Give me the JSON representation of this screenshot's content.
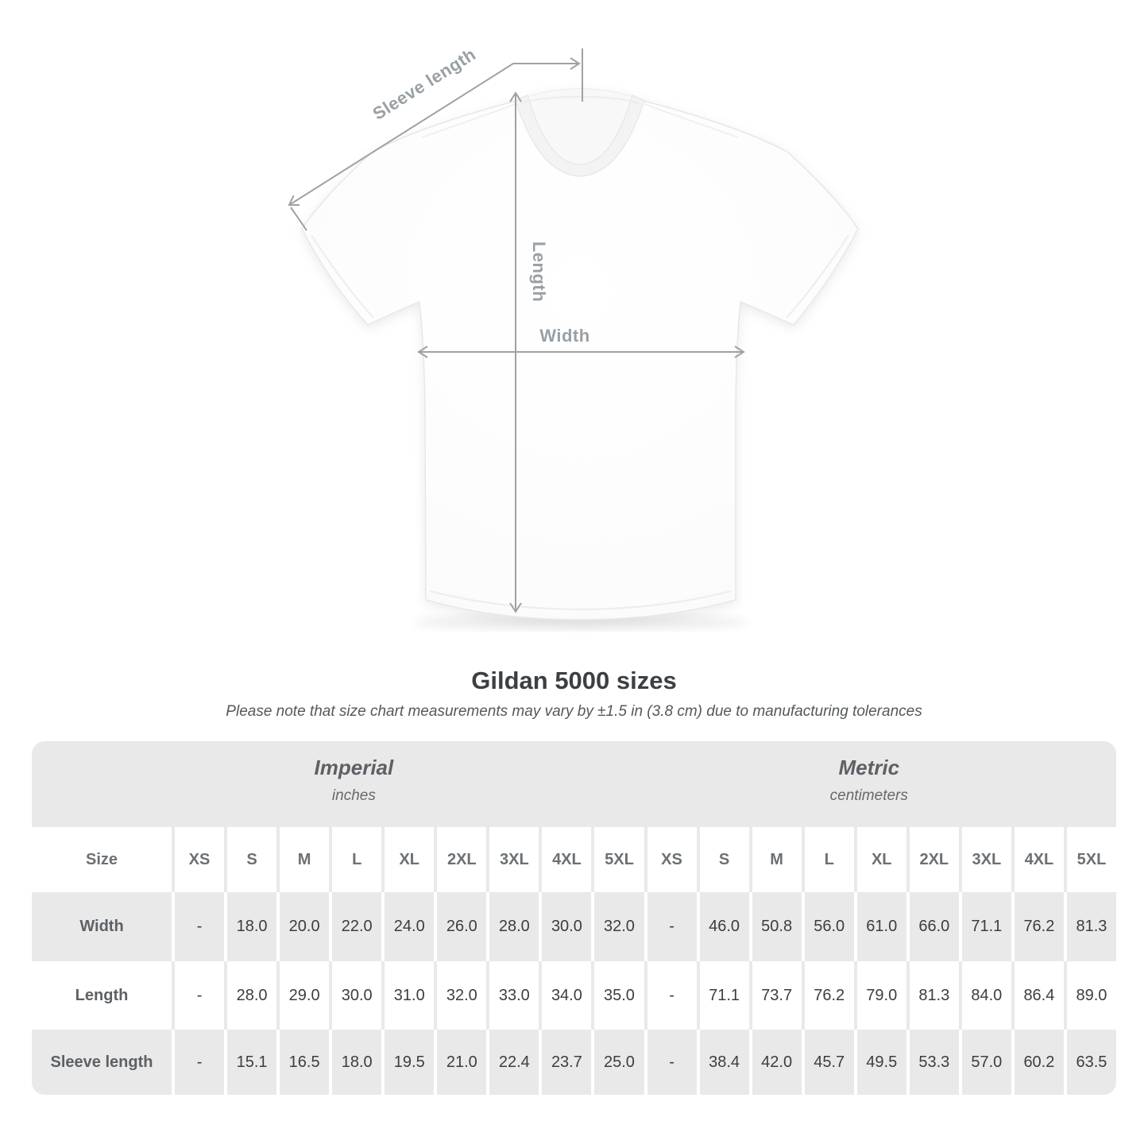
{
  "diagram": {
    "sleeve_length_label": "Sleeve length",
    "length_label": "Length",
    "width_label": "Width"
  },
  "title": "Gildan 5000 sizes",
  "note": "Please note that size chart measurements may vary by ±1.5 in (3.8 cm) due to manufacturing tolerances",
  "table": {
    "size_header": "Size",
    "groups": [
      {
        "name": "Imperial",
        "unit": "inches"
      },
      {
        "name": "Metric",
        "unit": "centimeters"
      }
    ],
    "sizes": [
      "XS",
      "S",
      "M",
      "L",
      "XL",
      "2XL",
      "3XL",
      "4XL",
      "5XL"
    ],
    "rows": [
      {
        "label": "Width",
        "imperial": [
          "-",
          "18.0",
          "20.0",
          "22.0",
          "24.0",
          "26.0",
          "28.0",
          "30.0",
          "32.0"
        ],
        "metric": [
          "-",
          "46.0",
          "50.8",
          "56.0",
          "61.0",
          "66.0",
          "71.1",
          "76.2",
          "81.3"
        ]
      },
      {
        "label": "Length",
        "imperial": [
          "-",
          "28.0",
          "29.0",
          "30.0",
          "31.0",
          "32.0",
          "33.0",
          "34.0",
          "35.0"
        ],
        "metric": [
          "-",
          "71.1",
          "73.7",
          "76.2",
          "79.0",
          "81.3",
          "84.0",
          "86.4",
          "89.0"
        ]
      },
      {
        "label": "Sleeve length",
        "imperial": [
          "-",
          "15.1",
          "16.5",
          "18.0",
          "19.5",
          "21.0",
          "22.4",
          "23.7",
          "25.0"
        ],
        "metric": [
          "-",
          "38.4",
          "42.0",
          "45.7",
          "49.5",
          "53.3",
          "57.0",
          "60.2",
          "63.5"
        ]
      }
    ]
  },
  "colors": {
    "table_gray": "#e9e9e9",
    "dimension_line": "#a1a1a1",
    "dimension_label": "#99a0a5",
    "number_text": "#3b3e40",
    "heading_text": "#3c4043"
  },
  "chart_data": {
    "type": "table",
    "title": "Gildan 5000 sizes",
    "note": "Please note that size chart measurements may vary by ±1.5 in (3.8 cm) due to manufacturing tolerances",
    "column_groups": [
      "Imperial (inches)",
      "Metric (centimeters)"
    ],
    "sizes": [
      "XS",
      "S",
      "M",
      "L",
      "XL",
      "2XL",
      "3XL",
      "4XL",
      "5XL"
    ],
    "measurements": [
      {
        "label": "Width",
        "inches": [
          null,
          18.0,
          20.0,
          22.0,
          24.0,
          26.0,
          28.0,
          30.0,
          32.0
        ],
        "centimeters": [
          null,
          46.0,
          50.8,
          56.0,
          61.0,
          66.0,
          71.1,
          76.2,
          81.3
        ]
      },
      {
        "label": "Length",
        "inches": [
          null,
          28.0,
          29.0,
          30.0,
          31.0,
          32.0,
          33.0,
          34.0,
          35.0
        ],
        "centimeters": [
          null,
          71.1,
          73.7,
          76.2,
          79.0,
          81.3,
          84.0,
          86.4,
          89.0
        ]
      },
      {
        "label": "Sleeve length",
        "inches": [
          null,
          15.1,
          16.5,
          18.0,
          19.5,
          21.0,
          22.4,
          23.7,
          25.0
        ],
        "centimeters": [
          null,
          38.4,
          42.0,
          45.7,
          49.5,
          53.3,
          57.0,
          60.2,
          63.5
        ]
      }
    ]
  }
}
